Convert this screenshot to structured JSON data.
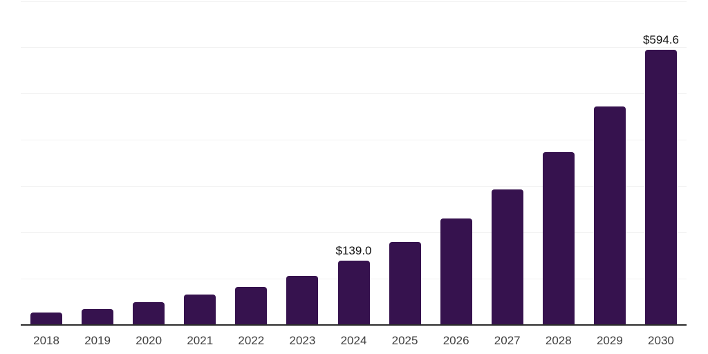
{
  "chart_data": {
    "type": "bar",
    "title": "",
    "xlabel": "",
    "ylabel": "",
    "categories": [
      "2018",
      "2019",
      "2020",
      "2021",
      "2022",
      "2023",
      "2024",
      "2025",
      "2026",
      "2027",
      "2028",
      "2029",
      "2030"
    ],
    "values": [
      27.0,
      35.1,
      48.9,
      65.4,
      82.7,
      106.5,
      139.0,
      179.0,
      230.2,
      292.5,
      373.7,
      472.8,
      594.6
    ],
    "data_labels": {
      "2024": "$139.0",
      "2030": "$594.6"
    },
    "ylim": [
      0,
      700
    ],
    "gridline_step": 100,
    "grid": "horizontal-only",
    "legend": "none",
    "y_axis_ticks_visible": false,
    "colors": {
      "bar": "#36124E",
      "gridline": "#f1f1f1",
      "axis_line": "#2b2b2b",
      "tick_label": "#404040",
      "data_label": "#111111",
      "background": "#ffffff"
    }
  }
}
